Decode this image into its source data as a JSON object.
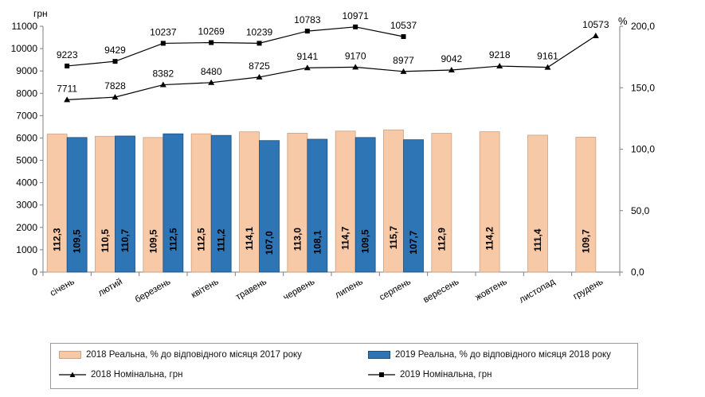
{
  "chart_data": {
    "type": "bar",
    "categories": [
      "січень",
      "лютий",
      "березень",
      "квітень",
      "травень",
      "червень",
      "липень",
      "серпень",
      "вересень",
      "жовтень",
      "листопад",
      "грудень"
    ],
    "left_axis": {
      "label": "грн",
      "ylim": [
        0,
        11000
      ],
      "ticks": [
        "0",
        "1000",
        "2000",
        "3000",
        "4000",
        "5000",
        "6000",
        "7000",
        "8000",
        "9000",
        "10000",
        "11000"
      ]
    },
    "right_axis": {
      "label": "%",
      "ylim": [
        0,
        200
      ],
      "ticks": [
        "0,0",
        "50,0",
        "100,0",
        "150,0",
        "200,0"
      ]
    },
    "grid": false,
    "legend_position": "bottom",
    "series": [
      {
        "name": "2018 Реальна, % до відповідного місяця 2017 року",
        "kind": "bar",
        "axis": "right",
        "color": "#f8c9a6",
        "edge": "#c9a184",
        "values": [
          112.3,
          110.5,
          109.5,
          112.5,
          114.1,
          113.0,
          114.7,
          115.7,
          112.9,
          114.2,
          111.4,
          109.7
        ],
        "labels": [
          "112,3",
          "110,5",
          "109,5",
          "112,5",
          "114,1",
          "113,0",
          "114,7",
          "115,7",
          "112,9",
          "114,2",
          "111,4",
          "109,7"
        ]
      },
      {
        "name": "2019 Реальна, % до відповідного місяця 2018 року",
        "kind": "bar",
        "axis": "right",
        "color": "#2e75b6",
        "edge": "#1f4e79",
        "values": [
          109.5,
          110.7,
          112.5,
          111.2,
          107.0,
          108.1,
          109.5,
          107.7,
          null,
          null,
          null,
          null
        ],
        "labels": [
          "109,5",
          "110,7",
          "112,5",
          "111,2",
          "107,0",
          "108,1",
          "109,5",
          "107,7",
          "",
          "",
          "",
          ""
        ]
      },
      {
        "name": "2018 Номінальна, грн",
        "kind": "line",
        "axis": "left",
        "marker": "triangle",
        "color": "#000000",
        "values": [
          7711,
          7828,
          8382,
          8480,
          8725,
          9141,
          9170,
          8977,
          9042,
          9218,
          9161,
          10573
        ],
        "labels": [
          "7711",
          "7828",
          "8382",
          "8480",
          "8725",
          "9141",
          "9170",
          "8977",
          "9042",
          "9218",
          "9161",
          "10573"
        ]
      },
      {
        "name": "2019 Номінальна, грн",
        "kind": "line",
        "axis": "left",
        "marker": "square",
        "color": "#000000",
        "values": [
          9223,
          9429,
          10237,
          10269,
          10239,
          10783,
          10971,
          10537,
          null,
          null,
          null,
          null
        ],
        "labels": [
          "9223",
          "9429",
          "10237",
          "10269",
          "10239",
          "10783",
          "10971",
          "10537",
          "",
          "",
          "",
          ""
        ]
      }
    ]
  }
}
